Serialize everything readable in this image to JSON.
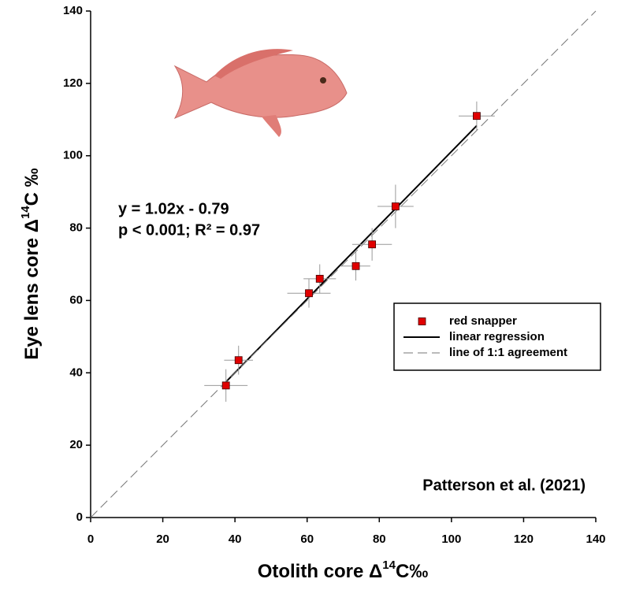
{
  "chart_data": {
    "type": "scatter",
    "x_label": {
      "text": "Otolith core Δ",
      "superscript": "14",
      "suffix": "C‰"
    },
    "y_label": {
      "text": "Eye lens core Δ",
      "superscript": "14",
      "suffix": "C ‰"
    },
    "annotations": [
      "y = 1.02x - 0.79",
      "p < 0.001; R² = 0.97",
      "Patterson et al. (2021)"
    ],
    "xlim": [
      0,
      140
    ],
    "ylim": [
      0,
      140
    ],
    "xticks": [
      0,
      20,
      40,
      60,
      80,
      100,
      120,
      140
    ],
    "yticks": [
      0,
      20,
      40,
      60,
      80,
      100,
      120,
      140
    ],
    "series": [
      {
        "name": "red snapper",
        "color": "#e00000",
        "style": "markers",
        "x": [
          37.5,
          41,
          60.5,
          63.5,
          73.5,
          78,
          84.5,
          107
        ],
        "values": [
          36.5,
          43.5,
          62,
          66,
          69.5,
          75.5,
          86,
          111
        ],
        "x_errors": [
          6,
          4,
          6,
          4.5,
          4,
          5.5,
          5,
          5
        ],
        "y_errors": [
          4.5,
          4,
          4,
          4,
          4,
          4.5,
          6,
          4
        ]
      },
      {
        "name": "linear regression",
        "color": "#000000",
        "style": "solid",
        "x": [
          37.5,
          107
        ],
        "values": [
          37.5,
          108.3
        ]
      },
      {
        "name": "line of 1:1 agreement",
        "color": "#777777",
        "style": "dashed",
        "x": [
          0,
          140
        ],
        "values": [
          0,
          140
        ]
      }
    ]
  }
}
